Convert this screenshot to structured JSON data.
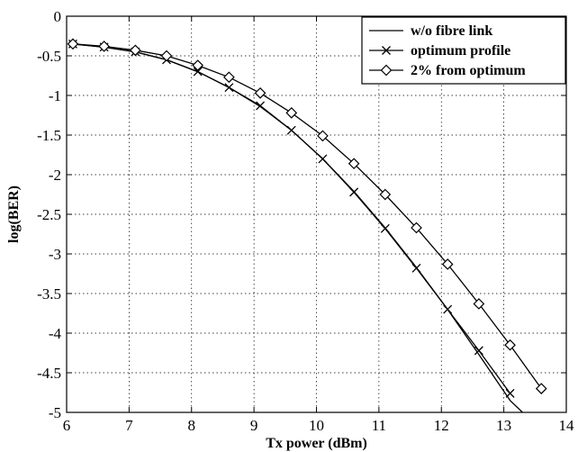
{
  "chart_data": {
    "type": "line",
    "title": "",
    "xlabel": "Tx power (dBm)",
    "ylabel": "log(BER)",
    "xlim": [
      6,
      14
    ],
    "ylim": [
      -5,
      0
    ],
    "xticks": [
      6,
      7,
      8,
      9,
      10,
      11,
      12,
      13,
      14
    ],
    "yticks": [
      0,
      -0.5,
      -1,
      -1.5,
      -2,
      -2.5,
      -3,
      -3.5,
      -4,
      -4.5,
      -5
    ],
    "grid": true,
    "legend_position": "top-right",
    "series": [
      {
        "name": "w/o fibre link",
        "marker": "none",
        "x": [
          6.1,
          6.6,
          7.1,
          7.6,
          8.1,
          8.6,
          9.1,
          9.6,
          10.1,
          10.6,
          11.1,
          11.6,
          12.1,
          12.6,
          13.1,
          13.3
        ],
        "y": [
          -0.35,
          -0.39,
          -0.45,
          -0.55,
          -0.7,
          -0.9,
          -1.14,
          -1.44,
          -1.8,
          -2.21,
          -2.67,
          -3.17,
          -3.7,
          -4.27,
          -4.85,
          -5.0
        ]
      },
      {
        "name": "optimum profile",
        "marker": "x",
        "x": [
          6.1,
          6.6,
          7.1,
          7.6,
          8.1,
          8.6,
          9.1,
          9.6,
          10.1,
          10.6,
          11.1,
          11.6,
          12.1,
          12.6,
          13.1
        ],
        "y": [
          -0.35,
          -0.39,
          -0.45,
          -0.55,
          -0.7,
          -0.9,
          -1.13,
          -1.44,
          -1.8,
          -2.22,
          -2.68,
          -3.18,
          -3.7,
          -4.22,
          -4.76
        ]
      },
      {
        "name": "2% from optimum",
        "marker": "diamond",
        "x": [
          6.1,
          6.6,
          7.1,
          7.6,
          8.1,
          8.6,
          9.1,
          9.6,
          10.1,
          10.6,
          11.1,
          11.6,
          12.1,
          12.6,
          13.1,
          13.6
        ],
        "y": [
          -0.35,
          -0.38,
          -0.43,
          -0.5,
          -0.62,
          -0.77,
          -0.97,
          -1.22,
          -1.51,
          -1.86,
          -2.25,
          -2.67,
          -3.13,
          -3.63,
          -4.15,
          -4.7
        ]
      }
    ]
  }
}
